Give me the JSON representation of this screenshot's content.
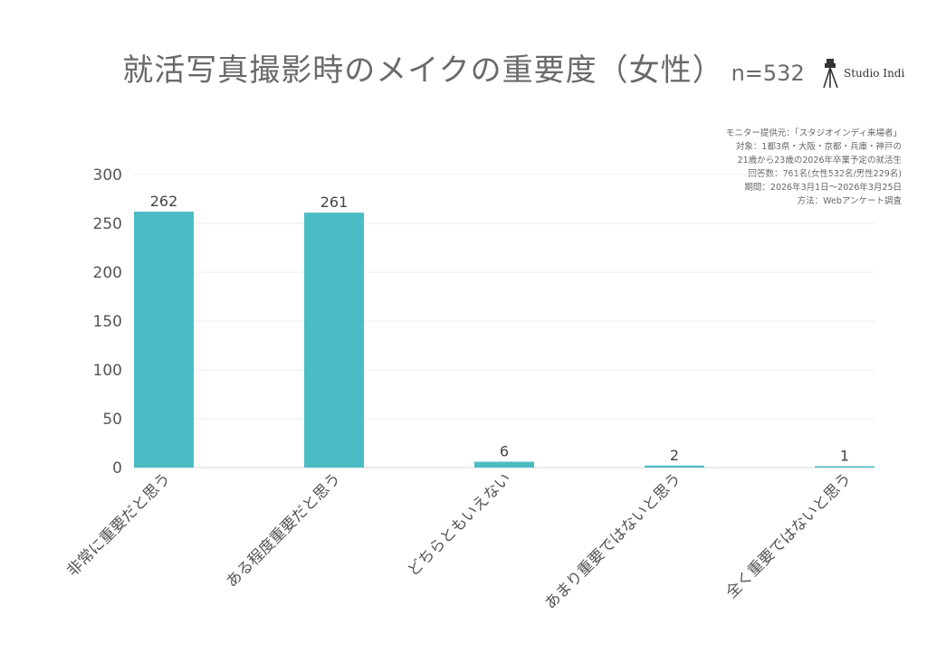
{
  "header": {
    "title": "就活写真撮影時のメイクの重要度（女性）",
    "n": "n=532",
    "logo_text": "Studio Indi"
  },
  "notes": [
    "モニター提供元：「スタジオインディ来場者」",
    "対象：1都3県・大阪・京都・兵庫・神戸の",
    "21歳から23歳の2026年卒業予定の就活生",
    "回答数：761名(女性532名/男性229名)",
    "期間：2026年3月1日〜2026年3月25日",
    "方法：Webアンケート調査"
  ],
  "chart_data": {
    "type": "bar",
    "categories": [
      "非常に重要だと思う",
      "ある程度重要だと思う",
      "どちらともいえない",
      "あまり重要ではないと思う",
      "全く重要ではないと思う"
    ],
    "values": [
      262,
      261,
      6,
      2,
      1
    ],
    "ylim": [
      0,
      300
    ],
    "yticks": [
      0,
      50,
      100,
      150,
      200,
      250,
      300
    ],
    "bar_color": "#4bbcc6",
    "grid": true
  }
}
